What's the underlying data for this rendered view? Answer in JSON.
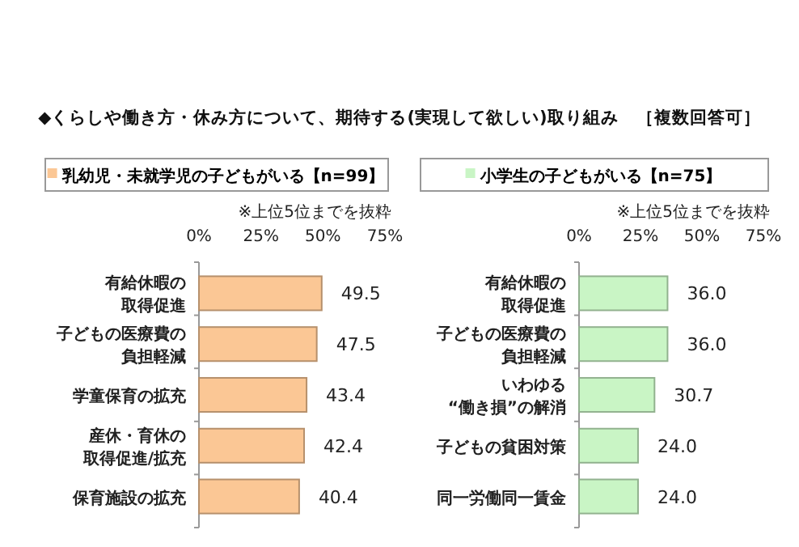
{
  "chart_data": [
    {
      "type": "bar",
      "orientation": "horizontal",
      "title": "◆くらしや働き方・休み方について、期待する(実現して欲しい)取り組み　［複数回答可］",
      "subtitle": "※上位5位までを抜粋",
      "categories": [
        "有給休暇の取得促進",
        "子どもの医療費の負担軽減",
        "学童保育の拡充",
        "産休・育休の取得促進/拡充",
        "保育施設の拡充"
      ],
      "series": [
        {
          "name": "乳幼児・未就学児の子どもがいる【n=99】",
          "color": "#fbc795",
          "values": [
            49.5,
            47.5,
            43.4,
            42.4,
            40.4
          ],
          "value_labels": [
            "49.5",
            "47.5",
            "43.4",
            "42.4",
            "40.4"
          ]
        }
      ],
      "xlim": [
        0,
        75
      ],
      "xticks": [
        {
          "value": 0,
          "label": "0%"
        },
        {
          "value": 25,
          "label": "25%"
        },
        {
          "value": 50,
          "label": "50%"
        },
        {
          "value": 75,
          "label": "75%"
        }
      ],
      "legend": "top",
      "grid": false
    },
    {
      "type": "bar",
      "orientation": "horizontal",
      "subtitle": "※上位5位までを抜粋",
      "categories": [
        "有給休暇の取得促進",
        "子どもの医療費の負担軽減",
        "いわゆる“働き損”の解消",
        "子どもの貧困対策",
        "同一労働同一賃金"
      ],
      "series": [
        {
          "name": "小学生の子どもがいる【n=75】",
          "color": "#c9f5c5",
          "values": [
            36.0,
            36.0,
            30.7,
            24.0,
            24.0
          ],
          "value_labels": [
            "36.0",
            "36.0",
            "30.7",
            "24.0",
            "24.0"
          ]
        }
      ],
      "xlim": [
        0,
        75
      ],
      "xticks": [
        {
          "value": 0,
          "label": "0%"
        },
        {
          "value": 25,
          "label": "25%"
        },
        {
          "value": 50,
          "label": "50%"
        },
        {
          "value": 75,
          "label": "75%"
        }
      ],
      "legend": "top",
      "grid": false
    }
  ]
}
